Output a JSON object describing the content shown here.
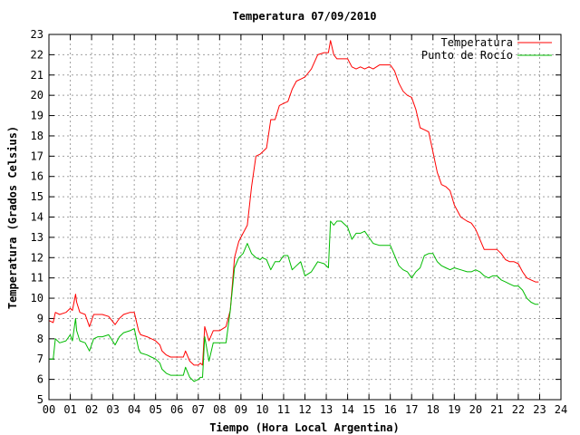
{
  "chart_data": {
    "type": "line",
    "title": "Temperatura 07/09/2010",
    "xlabel": "Tiempo (Hora Local Argentina)",
    "ylabel": "Temperatura (Grados Celsius)",
    "xlim": [
      0,
      24
    ],
    "ylim": [
      5,
      23
    ],
    "x_ticks": [
      0,
      1,
      2,
      3,
      4,
      5,
      6,
      7,
      8,
      9,
      10,
      11,
      12,
      13,
      14,
      15,
      16,
      17,
      18,
      19,
      20,
      21,
      22,
      23,
      24
    ],
    "x_tick_labels": [
      "00",
      "01",
      "02",
      "03",
      "04",
      "05",
      "06",
      "07",
      "08",
      "09",
      "10",
      "11",
      "12",
      "13",
      "14",
      "15",
      "16",
      "17",
      "18",
      "19",
      "20",
      "21",
      "22",
      "23",
      "24"
    ],
    "y_ticks": [
      5,
      6,
      7,
      8,
      9,
      10,
      11,
      12,
      13,
      14,
      15,
      16,
      17,
      18,
      19,
      20,
      21,
      22,
      23
    ],
    "grid": true,
    "legend_position": "top-right",
    "series": [
      {
        "name": "Temperatura",
        "color": "#ff0000",
        "x": [
          0,
          0.2,
          0.3,
          0.5,
          0.8,
          1.0,
          1.1,
          1.25,
          1.3,
          1.45,
          1.7,
          1.9,
          2.1,
          2.3,
          2.5,
          2.8,
          3.1,
          3.3,
          3.5,
          3.8,
          4.0,
          4.2,
          4.3,
          4.6,
          4.8,
          5.0,
          5.2,
          5.3,
          5.5,
          5.7,
          5.9,
          6.1,
          6.3,
          6.4,
          6.6,
          6.8,
          7.0,
          7.1,
          7.2,
          7.3,
          7.5,
          7.7,
          8.0,
          8.3,
          8.5,
          8.7,
          8.9,
          9.1,
          9.3,
          9.5,
          9.7,
          9.9,
          10.0,
          10.2,
          10.4,
          10.6,
          10.8,
          11.0,
          11.2,
          11.4,
          11.6,
          11.8,
          12.0,
          12.3,
          12.6,
          12.9,
          13.1,
          13.2,
          13.35,
          13.5,
          13.7,
          14.0,
          14.2,
          14.4,
          14.6,
          14.8,
          15.0,
          15.2,
          15.5,
          15.8,
          16.0,
          16.2,
          16.4,
          16.6,
          16.8,
          17.0,
          17.2,
          17.4,
          17.6,
          17.8,
          18.0,
          18.2,
          18.4,
          18.6,
          18.8,
          19.0,
          19.3,
          19.6,
          19.8,
          20.0,
          20.2,
          20.4,
          20.6,
          20.8,
          21.0,
          21.2,
          21.4,
          21.6,
          21.8,
          22.0,
          22.2,
          22.4,
          22.6,
          22.8,
          22.95
        ],
        "values": [
          8.9,
          8.8,
          9.3,
          9.2,
          9.3,
          9.5,
          9.4,
          10.2,
          9.8,
          9.3,
          9.2,
          8.6,
          9.2,
          9.2,
          9.2,
          9.1,
          8.7,
          9.0,
          9.2,
          9.3,
          9.3,
          8.4,
          8.2,
          8.1,
          8.0,
          7.9,
          7.7,
          7.4,
          7.2,
          7.1,
          7.1,
          7.1,
          7.1,
          7.4,
          6.9,
          6.7,
          6.7,
          6.8,
          6.7,
          8.6,
          7.9,
          8.4,
          8.4,
          8.6,
          9.4,
          12.0,
          12.8,
          13.2,
          13.6,
          15.5,
          17.0,
          17.1,
          17.2,
          17.4,
          18.8,
          18.8,
          19.5,
          19.6,
          19.7,
          20.3,
          20.7,
          20.8,
          20.9,
          21.3,
          22.0,
          22.1,
          22.1,
          22.7,
          22.0,
          21.8,
          21.8,
          21.8,
          21.4,
          21.3,
          21.4,
          21.3,
          21.4,
          21.3,
          21.5,
          21.5,
          21.5,
          21.2,
          20.6,
          20.2,
          20.0,
          19.9,
          19.3,
          18.4,
          18.3,
          18.2,
          17.2,
          16.2,
          15.6,
          15.5,
          15.3,
          14.6,
          14.0,
          13.8,
          13.7,
          13.4,
          12.9,
          12.4,
          12.4,
          12.4,
          12.4,
          12.2,
          11.9,
          11.8,
          11.8,
          11.7,
          11.3,
          11.0,
          10.9,
          10.8,
          10.8
        ]
      },
      {
        "name": "Punto de Rocío",
        "color": "#00bb00",
        "x": [
          0,
          0.2,
          0.3,
          0.5,
          0.8,
          1.0,
          1.1,
          1.25,
          1.3,
          1.45,
          1.7,
          1.9,
          2.1,
          2.3,
          2.5,
          2.8,
          3.1,
          3.3,
          3.5,
          3.8,
          4.0,
          4.2,
          4.3,
          4.6,
          4.8,
          5.0,
          5.2,
          5.3,
          5.5,
          5.7,
          5.9,
          6.1,
          6.3,
          6.4,
          6.6,
          6.8,
          7.0,
          7.1,
          7.2,
          7.3,
          7.5,
          7.7,
          8.0,
          8.3,
          8.5,
          8.7,
          8.9,
          9.1,
          9.3,
          9.5,
          9.7,
          9.9,
          10.0,
          10.2,
          10.4,
          10.6,
          10.8,
          11.0,
          11.2,
          11.4,
          11.6,
          11.8,
          12.0,
          12.3,
          12.6,
          12.9,
          13.1,
          13.2,
          13.35,
          13.5,
          13.7,
          14.0,
          14.2,
          14.4,
          14.6,
          14.8,
          15.0,
          15.2,
          15.5,
          15.8,
          16.0,
          16.2,
          16.4,
          16.6,
          16.8,
          17.0,
          17.2,
          17.4,
          17.6,
          17.8,
          18.0,
          18.2,
          18.4,
          18.6,
          18.8,
          19.0,
          19.3,
          19.6,
          19.8,
          20.0,
          20.2,
          20.4,
          20.6,
          20.8,
          21.0,
          21.2,
          21.4,
          21.6,
          21.8,
          22.0,
          22.2,
          22.4,
          22.6,
          22.8,
          22.95
        ],
        "values": [
          7.0,
          7.0,
          8.0,
          7.8,
          7.9,
          8.2,
          7.9,
          9.0,
          8.4,
          7.9,
          7.8,
          7.4,
          8.0,
          8.1,
          8.1,
          8.2,
          7.7,
          8.1,
          8.3,
          8.4,
          8.5,
          7.5,
          7.3,
          7.2,
          7.1,
          7.0,
          6.8,
          6.5,
          6.3,
          6.2,
          6.2,
          6.2,
          6.2,
          6.6,
          6.1,
          5.9,
          6.0,
          6.1,
          6.1,
          8.1,
          6.9,
          7.8,
          7.8,
          7.8,
          9.4,
          11.5,
          12.0,
          12.2,
          12.7,
          12.2,
          12.0,
          11.9,
          12.0,
          11.9,
          11.4,
          11.8,
          11.8,
          12.1,
          12.1,
          11.4,
          11.6,
          11.8,
          11.1,
          11.3,
          11.8,
          11.7,
          11.5,
          13.8,
          13.6,
          13.8,
          13.8,
          13.5,
          12.9,
          13.2,
          13.2,
          13.3,
          13.0,
          12.7,
          12.6,
          12.6,
          12.6,
          12.1,
          11.6,
          11.4,
          11.3,
          11.0,
          11.3,
          11.5,
          12.1,
          12.2,
          12.2,
          11.8,
          11.6,
          11.5,
          11.4,
          11.5,
          11.4,
          11.3,
          11.3,
          11.4,
          11.3,
          11.1,
          11.0,
          11.1,
          11.1,
          10.9,
          10.8,
          10.7,
          10.6,
          10.6,
          10.4,
          10.0,
          9.8,
          9.7,
          9.7
        ]
      }
    ]
  }
}
